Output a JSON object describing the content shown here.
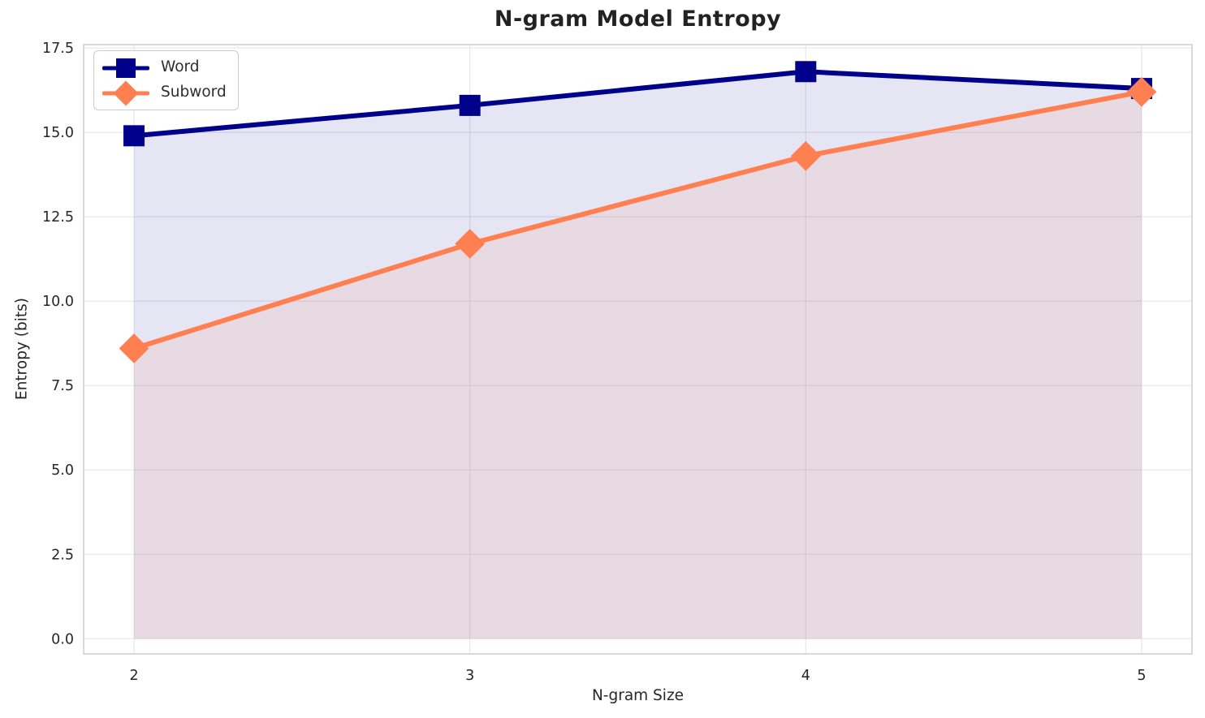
{
  "chart_data": {
    "type": "line",
    "title": "N-gram Model Entropy",
    "xlabel": "N-gram Size",
    "ylabel": "Entropy (bits)",
    "x": [
      2,
      3,
      4,
      5
    ],
    "series": [
      {
        "name": "Word",
        "values": [
          14.9,
          15.8,
          16.8,
          16.3
        ],
        "color": "#00008B",
        "marker": "square",
        "fill_opacity": 0.1
      },
      {
        "name": "Subword",
        "values": [
          8.6,
          11.7,
          14.3,
          16.2
        ],
        "color": "#FF7F50",
        "marker": "diamond",
        "fill_opacity": 0.1
      }
    ],
    "xticks": [
      2,
      3,
      4,
      5
    ],
    "xtick_labels": [
      "2",
      "3",
      "4",
      "5"
    ],
    "yticks": [
      0.0,
      2.5,
      5.0,
      7.5,
      10.0,
      12.5,
      15.0,
      17.5
    ],
    "ytick_labels": [
      "0.0",
      "2.5",
      "5.0",
      "7.5",
      "10.0",
      "12.5",
      "15.0",
      "17.5"
    ],
    "xlim": [
      1.85,
      5.15
    ],
    "ylim": [
      -0.45,
      17.6
    ],
    "grid": true,
    "legend_position": "upper left",
    "fill_to_zero": true,
    "grid_color": "#E8E8EC",
    "spine_color": "#C9C9C9",
    "text_color": "#262626",
    "title_color": "#222222",
    "background_color": "#FFFFFF"
  },
  "legend": {
    "items": [
      {
        "label": "Word"
      },
      {
        "label": "Subword"
      }
    ]
  }
}
